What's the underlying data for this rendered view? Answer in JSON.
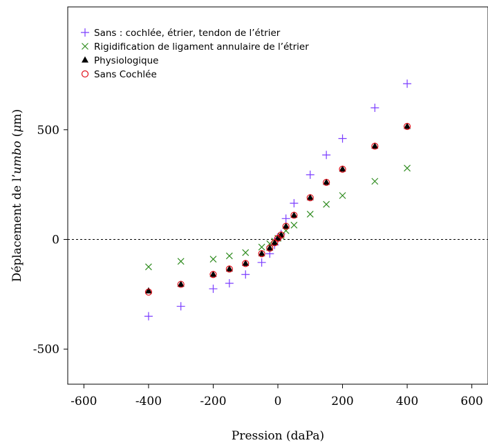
{
  "chart_data": {
    "type": "scatter",
    "xlabel": "Pression (daPa)",
    "ylabel_parts": [
      "Déplacement de l’",
      "umbo",
      " (",
      "μ",
      "m)"
    ],
    "xlim": [
      -650,
      650
    ],
    "ylim": [
      -660,
      1060
    ],
    "xticks": [
      -600,
      -400,
      -200,
      0,
      200,
      400,
      600
    ],
    "xtick_labels": [
      "-600",
      "-400",
      "-200",
      "0",
      "200",
      "400",
      "600"
    ],
    "yticks": [
      -500,
      0,
      500
    ],
    "ytick_labels": [
      "-500",
      "0",
      "500"
    ],
    "reference_line": {
      "y": 0,
      "style": "dashed"
    },
    "legend_position": "top-left",
    "series": [
      {
        "name": "Sans : cochlée, étrier, tendon de l’étrier",
        "marker": "plus",
        "color": "#7a3cff",
        "x": [
          -400,
          -300,
          -200,
          -150,
          -100,
          -50,
          -25,
          -10,
          0,
          10,
          25,
          50,
          100,
          150,
          200,
          300,
          400
        ],
        "y": [
          -350,
          -305,
          -225,
          -200,
          -160,
          -105,
          -65,
          -25,
          5,
          25,
          95,
          165,
          295,
          385,
          460,
          600,
          710
        ]
      },
      {
        "name": "Rigidification de ligament annulaire de l’étrier",
        "marker": "cross",
        "color": "#2e8b1e",
        "x": [
          -400,
          -300,
          -200,
          -150,
          -100,
          -50,
          -25,
          -10,
          0,
          10,
          25,
          50,
          100,
          150,
          200,
          300,
          400
        ],
        "y": [
          -125,
          -100,
          -90,
          -75,
          -60,
          -35,
          -20,
          -8,
          5,
          15,
          40,
          65,
          115,
          160,
          200,
          265,
          325
        ]
      },
      {
        "name": "Physiologique",
        "marker": "triangle",
        "color": "#000000",
        "x": [
          -400,
          -300,
          -200,
          -150,
          -100,
          -50,
          -25,
          -10,
          0,
          10,
          25,
          50,
          100,
          150,
          200,
          300,
          400
        ],
        "y": [
          -235,
          -205,
          -160,
          -135,
          -110,
          -65,
          -40,
          -15,
          5,
          20,
          60,
          110,
          190,
          260,
          320,
          425,
          515
        ]
      },
      {
        "name": "Sans Cochlée",
        "marker": "circle",
        "color": "#e0101a",
        "x": [
          -400,
          -300,
          -200,
          -150,
          -100,
          -50,
          -25,
          -10,
          0,
          10,
          25,
          50,
          100,
          150,
          200,
          300,
          400
        ],
        "y": [
          -240,
          -205,
          -160,
          -135,
          -110,
          -65,
          -40,
          -15,
          5,
          20,
          60,
          110,
          190,
          260,
          320,
          425,
          515
        ]
      }
    ]
  }
}
